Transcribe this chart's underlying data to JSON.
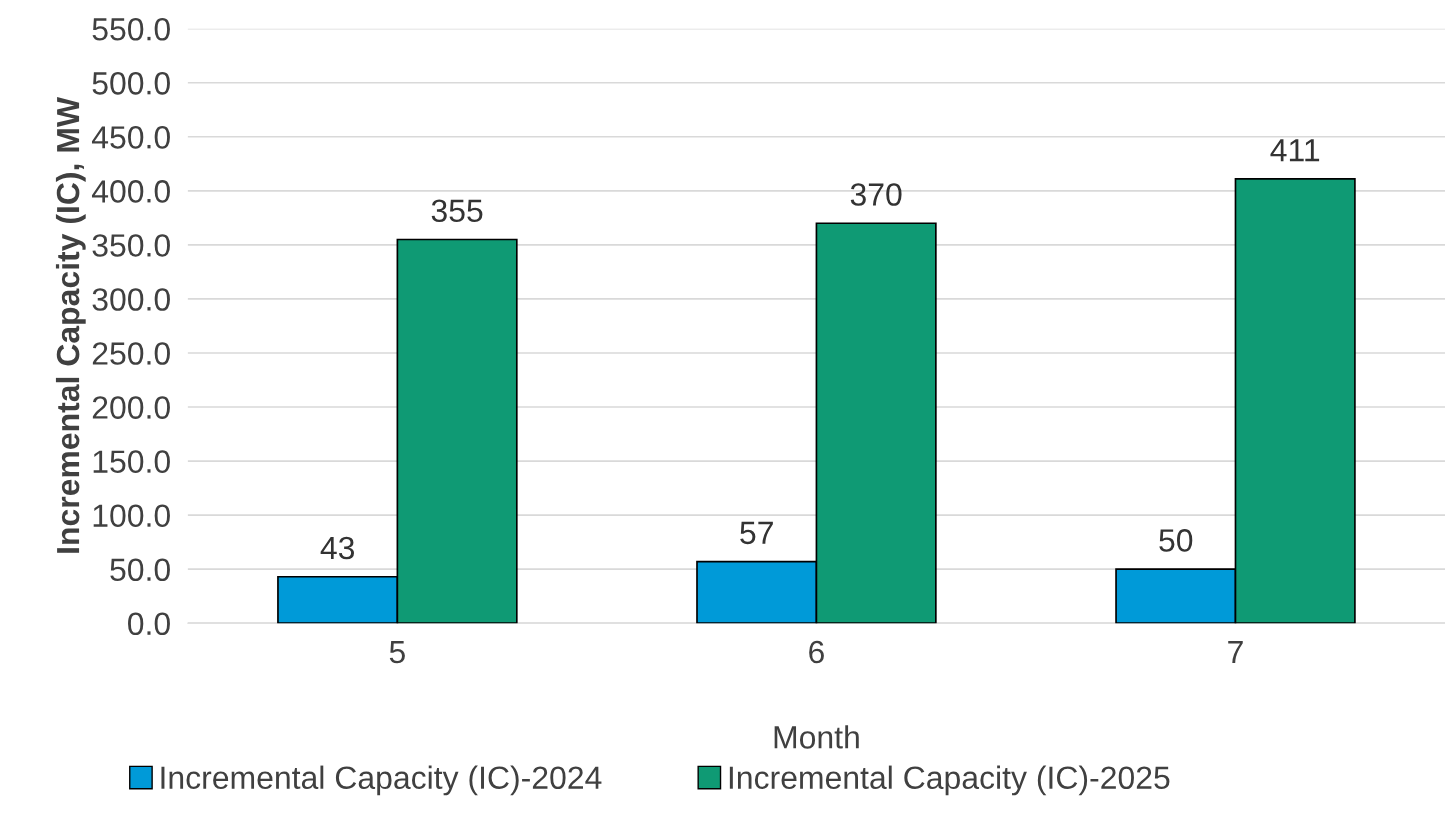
{
  "chart_data": {
    "type": "bar",
    "xlabel": "Month",
    "ylabel": "Incremental Capacity (IC), MW",
    "categories": [
      "5",
      "6",
      "7"
    ],
    "series": [
      {
        "name": "Incremental Capacity (IC)-2024",
        "color": "#009ad8",
        "values": [
          43,
          57,
          50
        ]
      },
      {
        "name": "Incremental Capacity (IC)-2025",
        "color": "#0f9a74",
        "values": [
          355,
          370,
          411
        ]
      }
    ],
    "ylim": [
      0,
      550
    ],
    "yticks": [
      {
        "value": 0,
        "label": "0.0"
      },
      {
        "value": 50,
        "label": "50.0"
      },
      {
        "value": 100,
        "label": "100.0"
      },
      {
        "value": 150,
        "label": "150.0"
      },
      {
        "value": 200,
        "label": "200.0"
      },
      {
        "value": 250,
        "label": "250.0"
      },
      {
        "value": 300,
        "label": "300.0"
      },
      {
        "value": 350,
        "label": "350.0"
      },
      {
        "value": 400,
        "label": "400.0"
      },
      {
        "value": 450,
        "label": "450.0"
      },
      {
        "value": 500,
        "label": "500.0"
      },
      {
        "value": 550,
        "label": "550.0"
      }
    ],
    "grid": "y",
    "legend": "bottom",
    "data_labels": true
  }
}
